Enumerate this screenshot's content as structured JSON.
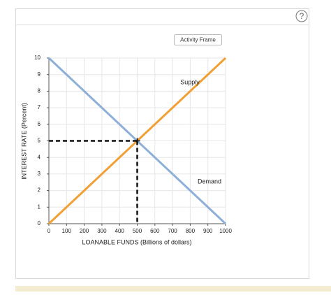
{
  "help_button": "?",
  "button": "Activity Frame",
  "chart_data": {
    "type": "line",
    "xlabel": "LOANABLE FUNDS (Billions of dollars)",
    "ylabel": "INTEREST RATE (Percent)",
    "x": [
      0,
      1000
    ],
    "series": [
      {
        "name": "Supply",
        "color": "#f0a035",
        "values": [
          0,
          10
        ]
      },
      {
        "name": "Demand",
        "color": "#8eb0d8",
        "values": [
          10,
          0
        ]
      }
    ],
    "equilibrium": {
      "x": 500,
      "y": 5
    },
    "xlim": [
      0,
      1000
    ],
    "xticks": [
      0,
      100,
      200,
      300,
      400,
      500,
      600,
      700,
      800,
      900,
      1000
    ],
    "ylim": [
      0,
      10
    ],
    "yticks": [
      0,
      1,
      2,
      3,
      4,
      5,
      6,
      7,
      8,
      9,
      10
    ],
    "grid": true
  }
}
